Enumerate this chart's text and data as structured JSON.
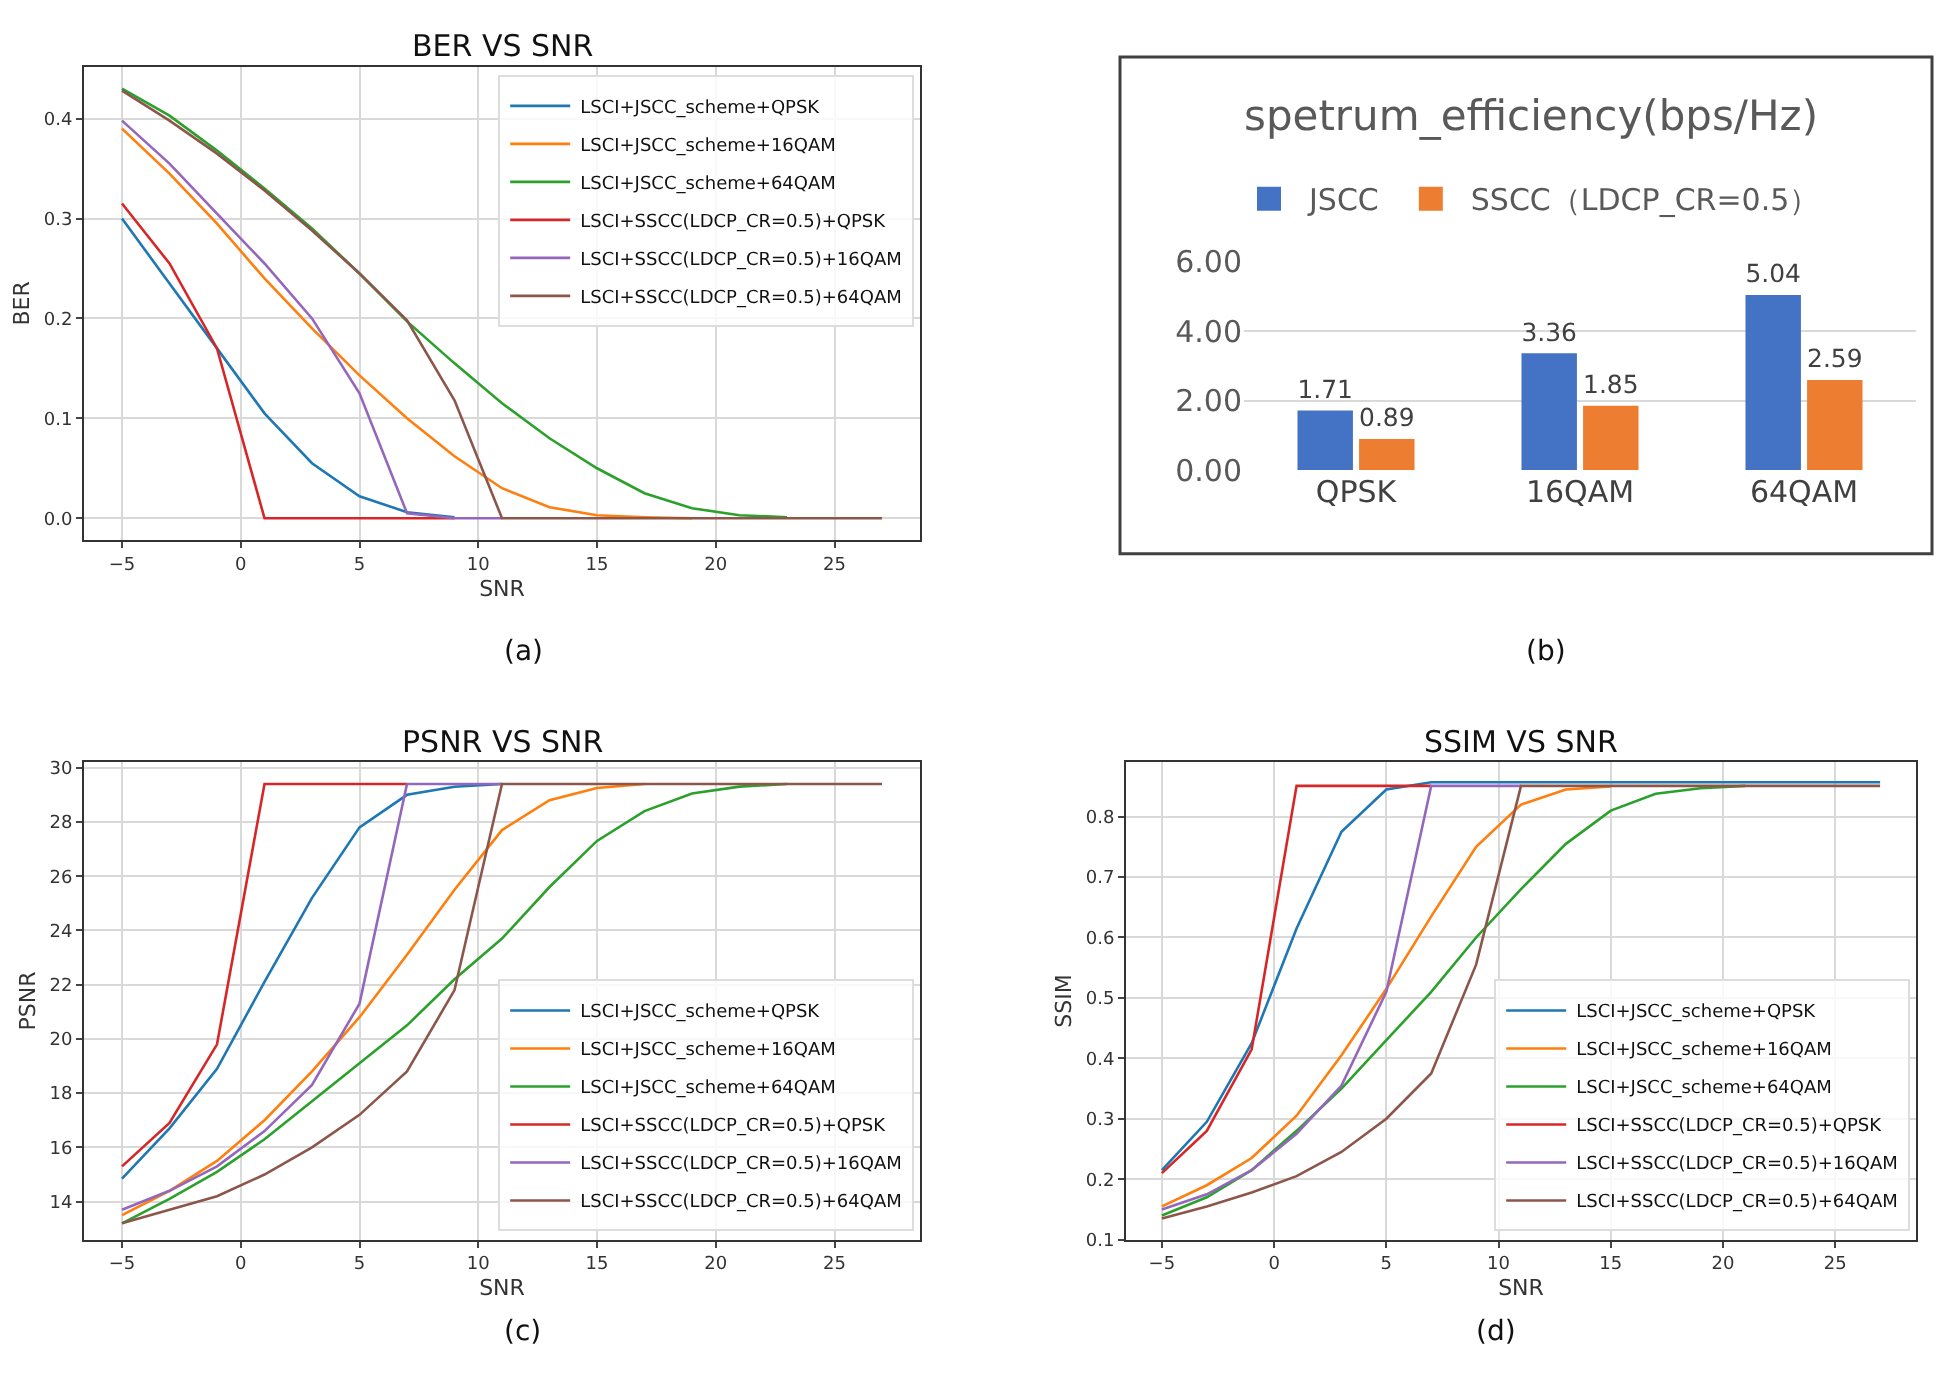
{
  "chart_data": [
    {
      "type": "line",
      "title": "BER VS SNR",
      "xlabel": "SNR",
      "ylabel": "BER",
      "x": [
        -5,
        -3,
        -1,
        1,
        3,
        5,
        7,
        9,
        11,
        13,
        15,
        17,
        19,
        21,
        23,
        25,
        27
      ],
      "series": [
        {
          "name": "LSCI+JSCC_scheme+QPSK",
          "color": "#1f77b4",
          "values": [
            0.3,
            0.235,
            0.17,
            0.105,
            0.055,
            0.022,
            0.006,
            0.001,
            null,
            null,
            null,
            null,
            null,
            null,
            null,
            null,
            null
          ]
        },
        {
          "name": "LSCI+JSCC_scheme+16QAM",
          "color": "#ff7f0e",
          "values": [
            0.39,
            0.345,
            0.295,
            0.24,
            0.19,
            0.143,
            0.1,
            0.062,
            0.03,
            0.011,
            0.003,
            0.001,
            0,
            null,
            null,
            null,
            null
          ]
        },
        {
          "name": "LSCI+JSCC_scheme+64QAM",
          "color": "#2ca02c",
          "values": [
            0.43,
            0.403,
            0.368,
            0.33,
            0.29,
            0.245,
            0.197,
            0.155,
            0.115,
            0.08,
            0.05,
            0.025,
            0.01,
            0.003,
            0.001,
            null,
            null
          ]
        },
        {
          "name": "LSCI+SSCC(LDCP_CR=0.5)+QPSK",
          "color": "#d62728",
          "values": [
            0.315,
            0.255,
            0.17,
            0,
            0,
            0,
            0,
            0,
            null,
            null,
            null,
            null,
            null,
            null,
            null,
            null,
            null
          ]
        },
        {
          "name": "LSCI+SSCC(LDCP_CR=0.5)+16QAM",
          "color": "#9467bd",
          "values": [
            0.398,
            0.355,
            0.305,
            0.255,
            0.2,
            0.125,
            0.005,
            0,
            0,
            null,
            null,
            null,
            null,
            null,
            null,
            null,
            null
          ]
        },
        {
          "name": "LSCI+SSCC(LDCP_CR=0.5)+64QAM",
          "color": "#8c564b",
          "values": [
            0.428,
            0.398,
            0.365,
            0.328,
            0.288,
            0.245,
            0.198,
            0.118,
            0,
            0,
            0,
            0,
            0,
            0,
            0,
            0,
            0
          ]
        }
      ],
      "xlim": [
        -6.6,
        28.6
      ],
      "ylim": [
        -0.022,
        0.452
      ],
      "xticks": [
        -5,
        0,
        5,
        10,
        15,
        20,
        25
      ],
      "yticks": [
        {
          "value": 0,
          "label": "0.0"
        },
        0.1,
        0.2,
        0.3,
        0.4
      ],
      "grid": true,
      "legend": "top right",
      "annotations": [
        "(a)"
      ]
    },
    {
      "type": "bar",
      "title": "spetrum_efficiency(bps/Hz)",
      "categories": [
        "QPSK",
        "16QAM",
        "64QAM"
      ],
      "series": [
        {
          "name": "JSCC",
          "color": "#4472c4",
          "values": [
            1.71,
            3.36,
            5.04
          ]
        },
        {
          "name": "SSCC（LDCP_CR=0.5）",
          "color": "#ed7d31",
          "values": [
            0.89,
            1.85,
            2.59
          ]
        }
      ],
      "ylim": [
        0,
        6
      ],
      "yticks": [
        {
          "value": 0,
          "label": "0.00"
        },
        {
          "value": 2,
          "label": "2.00"
        },
        {
          "value": 4,
          "label": "4.00"
        },
        {
          "value": 6,
          "label": "6.00"
        }
      ],
      "grid": "y",
      "legend": "top",
      "data_labels": true,
      "annotations": [
        "(b)"
      ]
    },
    {
      "type": "line",
      "title": "PSNR VS SNR",
      "xlabel": "SNR",
      "ylabel": "PSNR",
      "x": [
        -5,
        -3,
        -1,
        1,
        3,
        5,
        7,
        9,
        11,
        13,
        15,
        17,
        19,
        21,
        23,
        25,
        27
      ],
      "series": [
        {
          "name": "LSCI+JSCC_scheme+QPSK",
          "color": "#1f77b4",
          "values": [
            14.85,
            16.7,
            18.9,
            22.1,
            25.2,
            27.8,
            29.0,
            29.3,
            29.4,
            null,
            null,
            null,
            null,
            null,
            null,
            null,
            null
          ]
        },
        {
          "name": "LSCI+JSCC_scheme+16QAM",
          "color": "#ff7f0e",
          "values": [
            13.5,
            14.4,
            15.5,
            17.0,
            18.8,
            20.8,
            23.1,
            25.5,
            27.7,
            28.8,
            29.25,
            29.4,
            null,
            null,
            null,
            null,
            null
          ]
        },
        {
          "name": "LSCI+JSCC_scheme+64QAM",
          "color": "#2ca02c",
          "values": [
            13.2,
            14.1,
            15.1,
            16.3,
            17.7,
            19.1,
            20.5,
            22.2,
            23.7,
            25.6,
            27.3,
            28.4,
            29.05,
            29.3,
            29.4,
            null,
            null
          ]
        },
        {
          "name": "LSCI+SSCC(LDCP_CR=0.5)+QPSK",
          "color": "#d62728",
          "values": [
            15.3,
            16.9,
            19.8,
            29.4,
            29.4,
            29.4,
            29.4,
            null,
            null,
            null,
            null,
            null,
            null,
            null,
            null,
            null,
            null
          ]
        },
        {
          "name": "LSCI+SSCC(LDCP_CR=0.5)+16QAM",
          "color": "#9467bd",
          "values": [
            13.7,
            14.4,
            15.3,
            16.6,
            18.3,
            21.3,
            29.4,
            29.4,
            29.4,
            null,
            null,
            null,
            null,
            null,
            null,
            null,
            null
          ]
        },
        {
          "name": "LSCI+SSCC(LDCP_CR=0.5)+64QAM",
          "color": "#8c564b",
          "values": [
            13.2,
            13.7,
            14.2,
            15.0,
            16.0,
            17.2,
            18.8,
            21.8,
            29.4,
            29.4,
            29.4,
            29.4,
            29.4,
            29.4,
            29.4,
            29.4,
            29.4
          ]
        }
      ],
      "xlim": [
        -6.6,
        28.6
      ],
      "ylim": [
        12.6,
        30.2
      ],
      "xticks": [
        -5,
        0,
        5,
        10,
        15,
        20,
        25
      ],
      "yticks": [
        14,
        16,
        18,
        20,
        22,
        24,
        26,
        28,
        30
      ],
      "grid": true,
      "legend": "bottom right",
      "annotations": [
        "(c)"
      ]
    },
    {
      "type": "line",
      "title": "SSIM VS SNR",
      "xlabel": "SNR",
      "ylabel": "SSIM",
      "x": [
        -5,
        -3,
        -1,
        1,
        3,
        5,
        7,
        9,
        11,
        13,
        15,
        17,
        19,
        21,
        23,
        25,
        27
      ],
      "series": [
        {
          "name": "LSCI+JSCC_scheme+QPSK",
          "color": "#1f77b4",
          "values": [
            0.215,
            0.295,
            0.425,
            0.615,
            0.775,
            0.845,
            0.857,
            0.857,
            0.857,
            0.857,
            0.857,
            0.857,
            0.857,
            0.857,
            0.857,
            0.857,
            0.857
          ]
        },
        {
          "name": "LSCI+JSCC_scheme+16QAM",
          "color": "#ff7f0e",
          "values": [
            0.155,
            0.19,
            0.235,
            0.305,
            0.405,
            0.515,
            0.635,
            0.75,
            0.82,
            0.845,
            0.85,
            null,
            null,
            null,
            null,
            null,
            null
          ]
        },
        {
          "name": "LSCI+JSCC_scheme+64QAM",
          "color": "#2ca02c",
          "values": [
            0.14,
            0.17,
            0.215,
            0.28,
            0.35,
            0.43,
            0.51,
            0.6,
            0.68,
            0.755,
            0.81,
            0.838,
            0.847,
            0.851,
            null,
            null,
            null
          ]
        },
        {
          "name": "LSCI+SSCC(LDCP_CR=0.5)+QPSK",
          "color": "#d62728",
          "values": [
            0.21,
            0.28,
            0.415,
            0.851,
            0.851,
            0.851,
            0.851,
            null,
            null,
            null,
            null,
            null,
            null,
            null,
            null,
            null,
            null
          ]
        },
        {
          "name": "LSCI+SSCC(LDCP_CR=0.5)+16QAM",
          "color": "#9467bd",
          "values": [
            0.15,
            0.175,
            0.215,
            0.275,
            0.355,
            0.51,
            0.851,
            0.851,
            0.851,
            null,
            null,
            null,
            null,
            null,
            null,
            null,
            null
          ]
        },
        {
          "name": "LSCI+SSCC(LDCP_CR=0.5)+64QAM",
          "color": "#8c564b",
          "values": [
            0.135,
            0.155,
            0.178,
            0.205,
            0.245,
            0.3,
            0.375,
            0.555,
            0.851,
            0.851,
            0.851,
            0.851,
            0.851,
            0.851,
            0.851,
            0.851,
            0.851
          ]
        }
      ],
      "xlim": [
        -6.6,
        28.6
      ],
      "ylim": [
        0.1,
        0.89
      ],
      "xticks": [
        -5,
        0,
        5,
        10,
        15,
        20,
        25
      ],
      "yticks": [
        0.1,
        0.2,
        0.3,
        0.4,
        0.5,
        0.6,
        0.7,
        0.8
      ],
      "grid": true,
      "legend": "bottom right",
      "annotations": [
        "(d)"
      ]
    }
  ]
}
